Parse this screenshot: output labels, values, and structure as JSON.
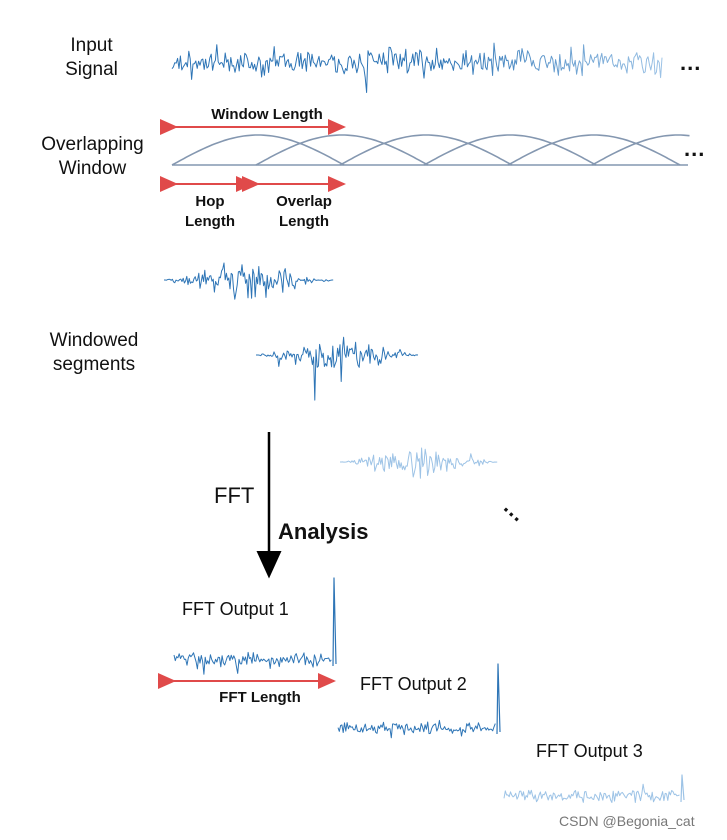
{
  "labels": {
    "input_signal": "Input Signal",
    "overlapping_window": "Overlapping Window",
    "window_length": "Window Length",
    "hop_length": "Hop Length",
    "overlap_length": "Overlap Length",
    "windowed_segments": "Windowed segments",
    "fft": "FFT",
    "analysis": "Analysis",
    "fft_output_1": "FFT Output 1",
    "fft_output_2": "FFT Output 2",
    "fft_output_3": "FFT Output 3",
    "fft_length": "FFT Length",
    "ellipsis": "...",
    "watermark": "CSDN @Begonia_cat"
  },
  "colors": {
    "signal_dark": "#2E75B6",
    "signal_light": "#9DC3E6",
    "window_curve": "#8497B0",
    "arrow_red": "#E04A4A",
    "arrow_black": "#000000"
  }
}
